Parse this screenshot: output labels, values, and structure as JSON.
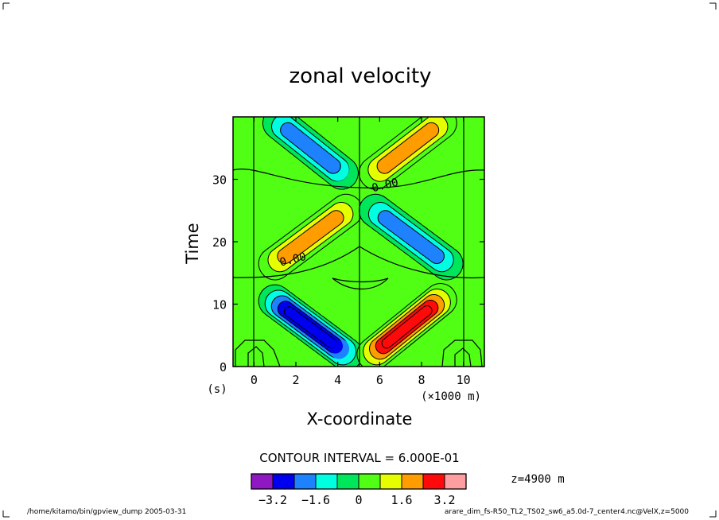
{
  "chart_data": {
    "type": "heatmap",
    "title": "zonal velocity",
    "xlabel": "X-coordinate",
    "xunit": "(×1000 m)",
    "ylabel": "Time",
    "yunit": "(s)",
    "xlim": [
      -1,
      11
    ],
    "ylim": [
      0,
      40
    ],
    "x_ticks": [
      0,
      2,
      4,
      6,
      8,
      10
    ],
    "y_ticks": [
      0,
      10,
      20,
      30
    ],
    "contour_interval_text": "CONTOUR INTERVAL = 6.000E-01",
    "contour_interval": 0.6,
    "contour_labels": [
      {
        "text": "0.00",
        "x": 6.3,
        "y": 28.5
      },
      {
        "text": "0.00",
        "x": 1.9,
        "y": 16.6
      }
    ],
    "level_text": "z=4900 m",
    "features": [
      {
        "sign": "negative",
        "from": [
          1.0,
          10.5
        ],
        "to": [
          4.4,
          2.0
        ],
        "peak": -3.4
      },
      {
        "sign": "positive",
        "from": [
          5.7,
          2.0
        ],
        "to": [
          8.9,
          10.7
        ],
        "peak": 3.4
      },
      {
        "sign": "positive",
        "from": [
          1.0,
          16.5
        ],
        "to": [
          4.4,
          25.0
        ],
        "peak": 2.2
      },
      {
        "sign": "negative",
        "from": [
          5.8,
          25.0
        ],
        "to": [
          9.2,
          16.5
        ],
        "peak": -2.2
      },
      {
        "sign": "negative",
        "from": [
          1.2,
          39.0
        ],
        "to": [
          4.2,
          31.0
        ],
        "peak": -2.0
      },
      {
        "sign": "positive",
        "from": [
          5.8,
          31.0
        ],
        "to": [
          8.9,
          39.0
        ],
        "peak": 2.0
      }
    ],
    "colorbar": {
      "colors": [
        "#8f18c2",
        "#0000f0",
        "#1e82ff",
        "#00ffe1",
        "#00e65a",
        "#50ff14",
        "#e6ff00",
        "#ff9c00",
        "#ff0a0a",
        "#ff9ea0"
      ],
      "tick_labels": [
        "−3.2",
        "−1.6",
        "0",
        "1.6",
        "3.2"
      ],
      "tick_values": [
        -3.2,
        -1.6,
        0,
        1.6,
        3.2
      ],
      "bounds": [
        -4.0,
        -3.2,
        -2.4,
        -1.6,
        -0.8,
        0,
        0.8,
        1.6,
        2.4,
        3.2,
        4.0
      ]
    }
  },
  "footer": {
    "left": "/home/kitamo/bin/gpview_dump   2005-03-31",
    "right": "arare_dim_fs-R50_TL2_TS02_sw6_a5.0d-7_center4.nc@VelX,z=5000"
  }
}
